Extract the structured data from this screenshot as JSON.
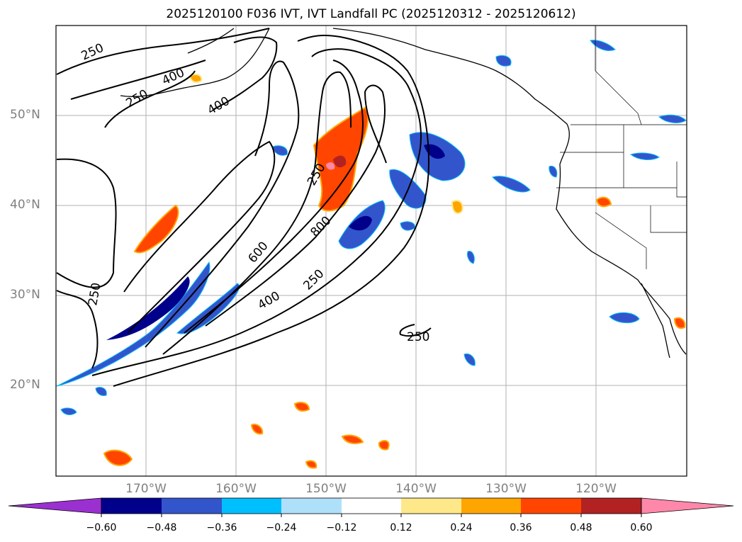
{
  "title": "2025120100 F036 IVT, IVT Landfall PC (2025120312 - 2025120612)",
  "lat_labels": [
    "50°N",
    "40°N",
    "30°N",
    "20°N"
  ],
  "lon_labels": [
    "170°W",
    "160°W",
    "150°W",
    "140°W",
    "130°W",
    "120°W"
  ],
  "contour_labels": [
    "250",
    "400",
    "250",
    "400",
    "250",
    "600",
    "800",
    "250",
    "400",
    "250",
    "250"
  ],
  "colorbar": {
    "ticks": [
      "−0.60",
      "−0.48",
      "−0.36",
      "−0.24",
      "−0.12",
      "0.12",
      "0.24",
      "0.36",
      "0.48",
      "0.60"
    ],
    "colors": [
      "#9b30d0",
      "#00008b",
      "#3355cc",
      "#00bfff",
      "#afe0fa",
      "#ffffff",
      "#ffe88a",
      "#ffa500",
      "#ff4500",
      "#b22222",
      "#ff88aa"
    ]
  }
}
